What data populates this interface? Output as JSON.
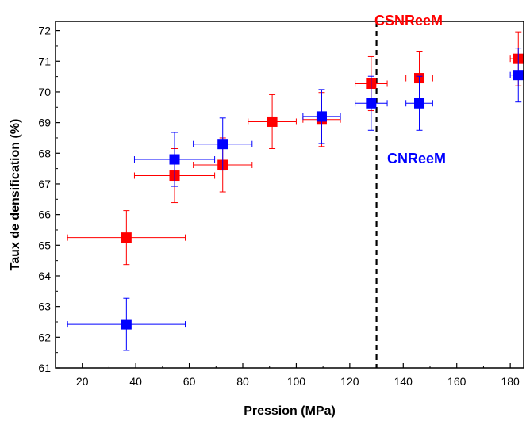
{
  "chart_data": {
    "type": "scatter",
    "title": "",
    "xlabel": "Pression (MPa)",
    "ylabel": "Taux de densification (%)",
    "xlim": [
      10,
      185
    ],
    "ylim": [
      61,
      72.3
    ],
    "xticks": [
      20,
      40,
      60,
      80,
      100,
      120,
      140,
      160,
      180
    ],
    "yticks": [
      61,
      62,
      63,
      64,
      65,
      66,
      67,
      68,
      69,
      70,
      71,
      72
    ],
    "grid": false,
    "legend": "none",
    "vline": {
      "x": 130,
      "style": "dashed",
      "color": "#000000"
    },
    "annotations": [
      {
        "text": "CSNReeM",
        "color": "#ff0000"
      },
      {
        "text": "CNReeM",
        "color": "#0000ff"
      }
    ],
    "series": [
      {
        "color": "#ff0000",
        "errorbar_color": "#ff0000",
        "points": [
          {
            "x": 36.5,
            "y": 65.25,
            "xerr": 22,
            "yerr": 0.88
          },
          {
            "x": 54.5,
            "y": 67.27,
            "xerr": 15,
            "yerr": 0.88
          },
          {
            "x": 72.5,
            "y": 67.62,
            "xerr": 11,
            "yerr": 0.88
          },
          {
            "x": 91.0,
            "y": 69.03,
            "xerr": 9,
            "yerr": 0.88
          },
          {
            "x": 109.5,
            "y": 69.1,
            "xerr": 7,
            "yerr": 0.88
          },
          {
            "x": 128.0,
            "y": 70.27,
            "xerr": 6,
            "yerr": 0.88
          },
          {
            "x": 146.0,
            "y": 70.45,
            "xerr": 5,
            "yerr": 0.88
          },
          {
            "x": 183.0,
            "y": 71.08,
            "xerr": 3,
            "yerr": 0.88
          }
        ]
      },
      {
        "color": "#0000ff",
        "errorbar_color": "#0000ff",
        "points": [
          {
            "x": 36.5,
            "y": 62.42,
            "xerr": 22,
            "yerr": 0.85
          },
          {
            "x": 54.5,
            "y": 67.8,
            "xerr": 15,
            "yerr": 0.88
          },
          {
            "x": 72.5,
            "y": 68.3,
            "xerr": 11,
            "yerr": 0.85
          },
          {
            "x": 109.5,
            "y": 69.2,
            "xerr": 7,
            "yerr": 0.88
          },
          {
            "x": 128.0,
            "y": 69.63,
            "xerr": 6,
            "yerr": 0.88
          },
          {
            "x": 146.0,
            "y": 69.63,
            "xerr": 5,
            "yerr": 0.88
          },
          {
            "x": 183.0,
            "y": 70.55,
            "xerr": 3,
            "yerr": 0.88
          }
        ]
      }
    ]
  }
}
